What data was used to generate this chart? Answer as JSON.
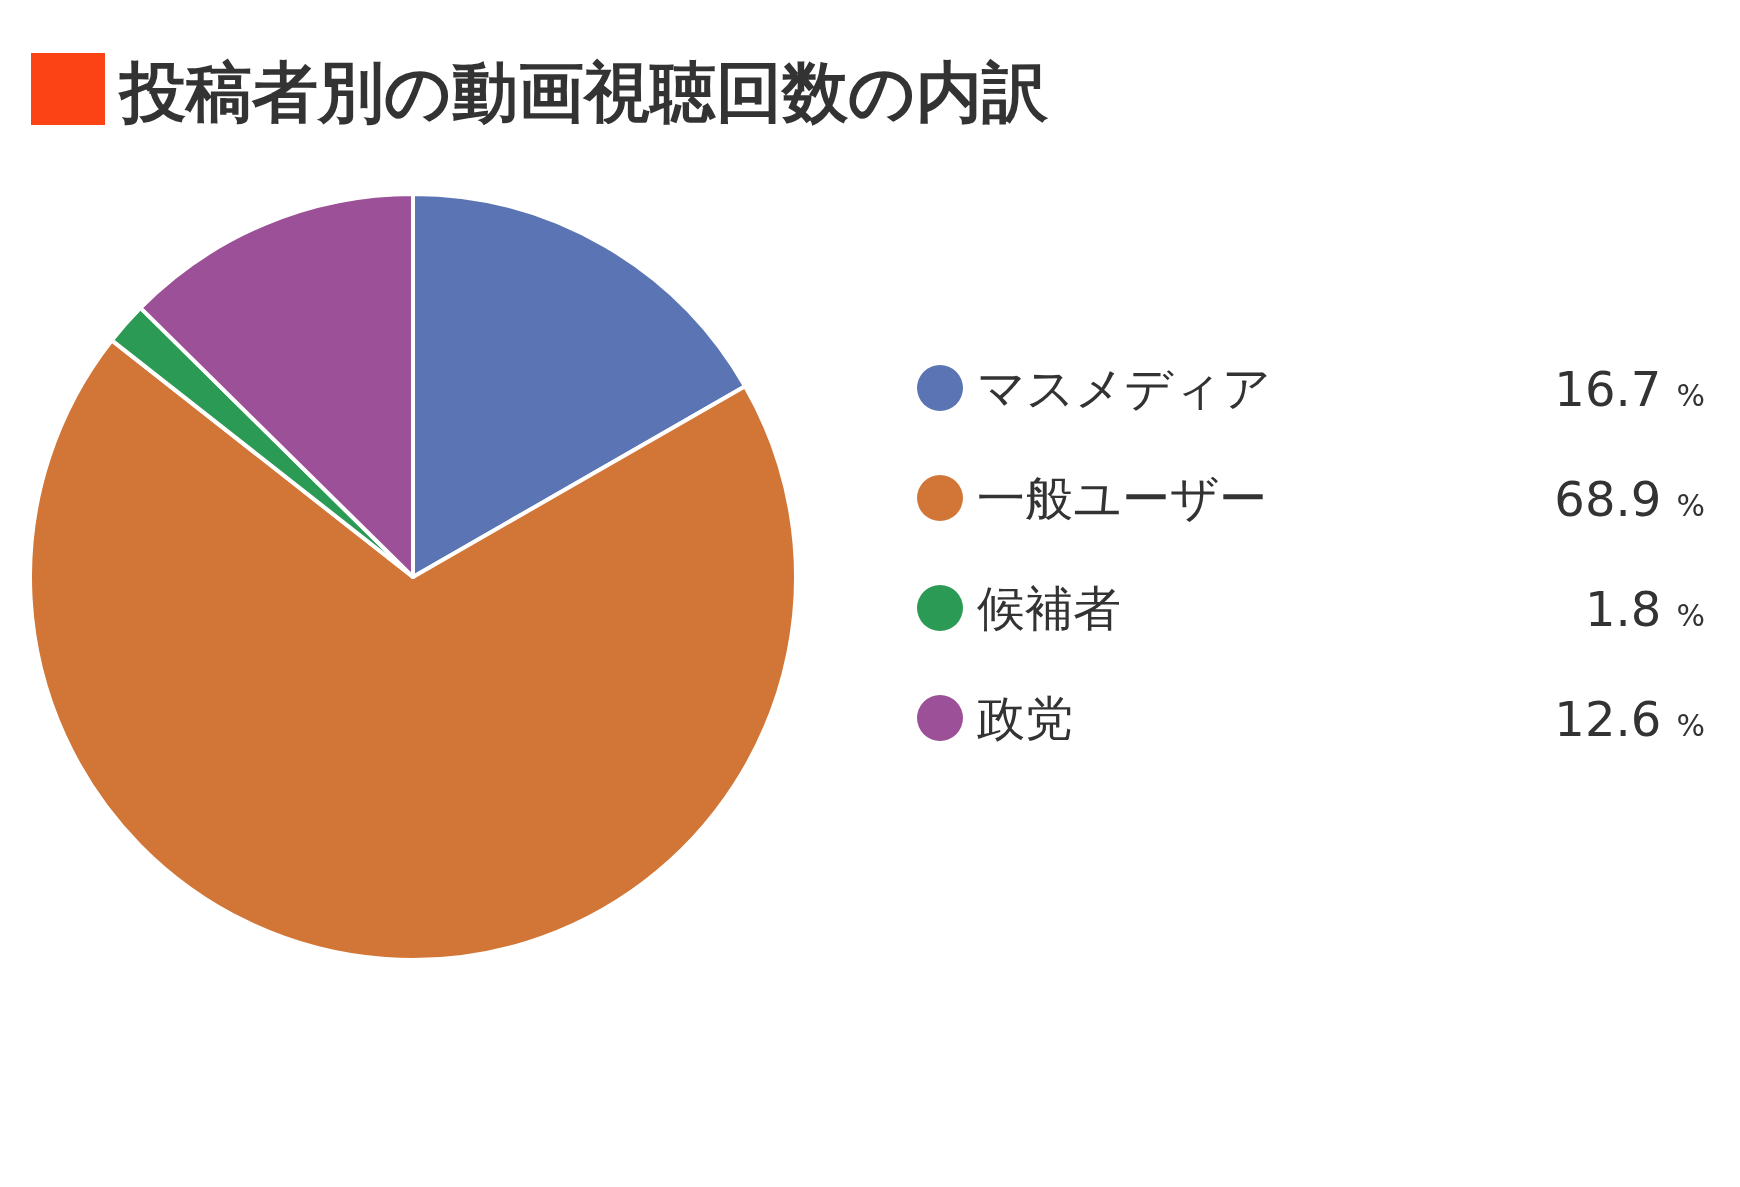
{
  "chart_data": {
    "type": "pie",
    "title": "投稿者別の動画視聴回数の内訳",
    "categories": [
      "マスメディア",
      "一般ユーザー",
      "候補者",
      "政党"
    ],
    "values": [
      16.7,
      68.9,
      1.8,
      12.6
    ],
    "colors": [
      "#5b74b4",
      "#d27637",
      "#2a9a55",
      "#9c5097"
    ],
    "value_labels": [
      "16.7 %",
      "68.9 %",
      "1.8 %",
      "12.6 %"
    ],
    "legend": "right"
  }
}
